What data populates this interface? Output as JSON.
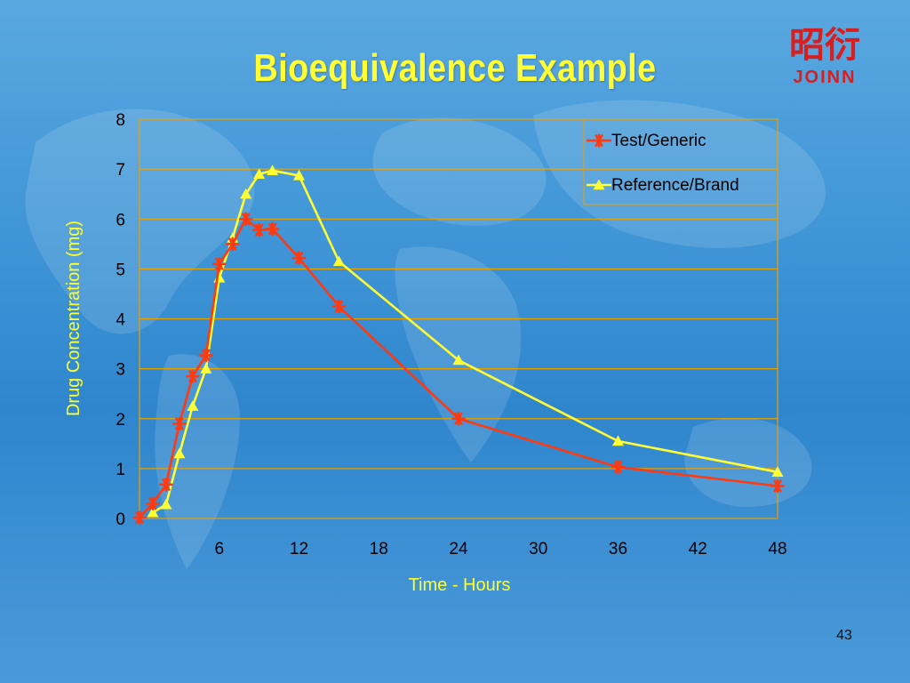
{
  "slide": {
    "title": "Bioequivalence Example",
    "page_number": "43",
    "logo_text": "JOINN",
    "logo_glyphs": "昭衍"
  },
  "colors": {
    "title": "#ffff33",
    "axis_label": "#ffff33",
    "test_series": "#ff3a10",
    "reference_series": "#ffff33",
    "grid": "#e8a000",
    "logo": "#d81e1e"
  },
  "chart_data": {
    "type": "line",
    "title": "",
    "xlabel": "Time - Hours",
    "ylabel": "Drug Concentration (mg)",
    "xlim": [
      0,
      48
    ],
    "ylim": [
      0,
      8
    ],
    "x_ticks": [
      6,
      12,
      18,
      24,
      30,
      36,
      42,
      48
    ],
    "y_ticks": [
      0,
      1,
      2,
      3,
      4,
      5,
      6,
      7,
      8
    ],
    "grid": "horizontal",
    "legend_position": "top-right",
    "series": [
      {
        "name": "Test/Generic",
        "marker": "asterisk",
        "color": "#ff3a10",
        "x": [
          0,
          1,
          2,
          3,
          4,
          5,
          6,
          7,
          8,
          9,
          10,
          12,
          15,
          24,
          36,
          48
        ],
        "y": [
          0.02,
          0.3,
          0.68,
          1.9,
          2.85,
          3.27,
          5.1,
          5.5,
          6.0,
          5.78,
          5.8,
          5.22,
          4.25,
          2.0,
          1.03,
          0.65
        ]
      },
      {
        "name": "Reference/Brand",
        "marker": "triangle",
        "color": "#ffff33",
        "x": [
          1,
          2,
          3,
          4,
          5,
          6,
          7,
          8,
          9,
          10,
          12,
          15,
          24,
          36,
          48
        ],
        "y": [
          0.12,
          0.28,
          1.3,
          2.25,
          3.0,
          4.82,
          5.62,
          6.5,
          6.9,
          6.97,
          6.87,
          5.15,
          3.17,
          1.55,
          0.93
        ]
      }
    ]
  }
}
